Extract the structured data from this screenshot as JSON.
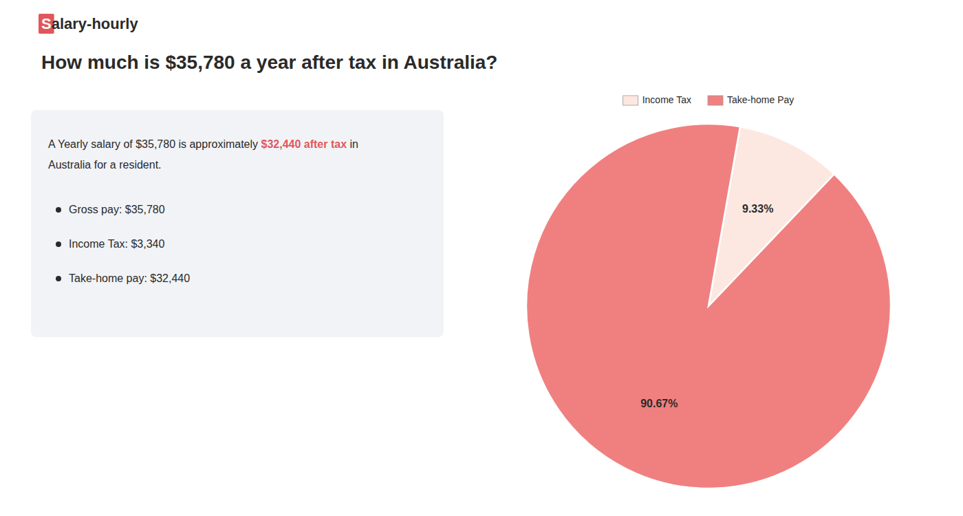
{
  "chart_data": {
    "type": "pie",
    "title": "How much is $35,780 a year after tax in Australia?",
    "annotations": [
      "Salary-hourly",
      "A Yearly salary of $35,780 is approximately ",
      "$32,440 after tax",
      " in",
      "Australia for a resident.",
      "Gross pay: $35,780",
      "Income Tax: $3,340",
      "Take-home pay: $32,440"
    ],
    "categories": [
      "Income Tax",
      "Take-home Pay"
    ],
    "values": [
      9.33,
      90.67
    ],
    "value_labels": [
      "9.33%",
      "90.67%"
    ],
    "colors": [
      "#fce8e0",
      "#f08080"
    ],
    "data_labels": true,
    "legend": "top"
  }
}
